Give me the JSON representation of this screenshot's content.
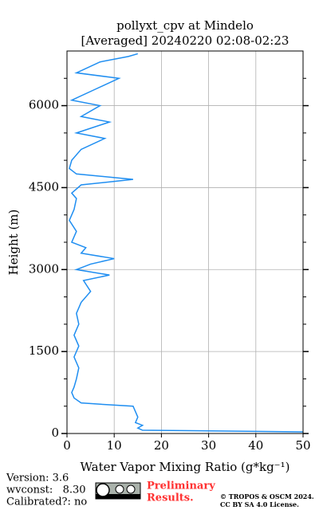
{
  "chart_data": {
    "type": "line",
    "title": "pollyxt_cpv at Mindelo",
    "subtitle": "[Averaged] 20240220 02:08-02:23",
    "x_label": "Water Vapor Mixing Ratio (g*kg⁻¹)",
    "y_label": "Height (m)",
    "color": "#1f8ef1",
    "y": [
      30,
      60,
      100,
      150,
      200,
      300,
      400,
      500,
      530,
      560,
      650,
      750,
      850,
      1000,
      1200,
      1400,
      1600,
      1800,
      2000,
      2200,
      2400,
      2600,
      2800,
      2900,
      3000,
      3100,
      3200,
      3300,
      3400,
      3500,
      3700,
      3900,
      4100,
      4300,
      4400,
      4550,
      4650,
      4750,
      4850,
      5000,
      5200,
      5400,
      5500,
      5700,
      5800,
      6000,
      6100,
      6300,
      6500,
      6600,
      6800,
      6900,
      6950
    ],
    "values": [
      50,
      16,
      15,
      16,
      14.5,
      15,
      14.5,
      14,
      8,
      3,
      1.5,
      1,
      1.5,
      2,
      2.5,
      1.5,
      2.5,
      1.5,
      2.5,
      2,
      3,
      5,
      3.5,
      9,
      2,
      5,
      10,
      3,
      4,
      1,
      2,
      0.5,
      1.5,
      2,
      1,
      3,
      14,
      2,
      0.5,
      1,
      3,
      8,
      2,
      9,
      3,
      7,
      1,
      6,
      11,
      2,
      7,
      13,
      15
    ],
    "xlim": [
      0,
      50
    ],
    "xticks": [
      0,
      10,
      20,
      30,
      40,
      50
    ],
    "ylim": [
      0,
      7000
    ],
    "yticks": [
      0,
      1500,
      3000,
      4500,
      6000
    ],
    "yminorticks": [
      500,
      1000,
      2000,
      2500,
      3500,
      4000,
      5000,
      5500,
      6500
    ],
    "grid": true
  },
  "footer": {
    "version": "Version: 3.6",
    "wvconst": "wvconst:   8.30",
    "calibrated": "Calibrated?: no",
    "prelim1": "Preliminary",
    "prelim2": "Results.",
    "copyright": "© TROPOS & OSCM 2024.",
    "license": "CC BY SA 4.0 License."
  }
}
